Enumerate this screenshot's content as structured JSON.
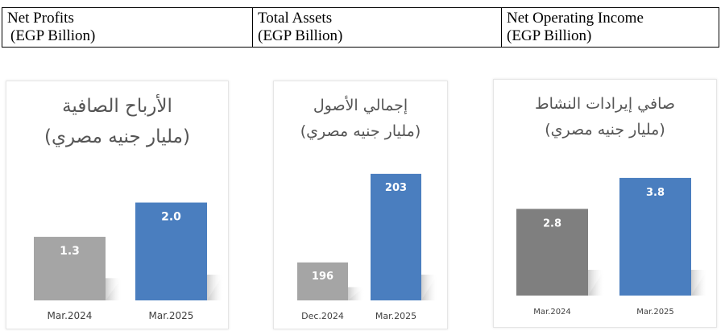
{
  "header": {
    "columns": [
      {
        "line1": "Net Profits",
        "line2": "(EGP Billion)"
      },
      {
        "line1": "Total Assets",
        "line2": "(EGP Billion)"
      },
      {
        "line1": "Net Operating Income",
        "line2": "(EGP Billion)"
      }
    ]
  },
  "colors": {
    "gray": "#a5a5a5",
    "dark_gray": "#7f7f7f",
    "blue": "#4a7ebf"
  },
  "chart_data": [
    {
      "type": "bar",
      "title": "الأرباح الصافية",
      "subtitle": "(مليار جنيه مصري)",
      "categories": [
        "Mar.2024",
        "Mar.2025"
      ],
      "values": [
        1.3,
        2.0
      ],
      "data_labels": [
        "1.3",
        "2.0"
      ],
      "ylim": [
        0,
        2.7
      ],
      "colors": [
        "#a5a5a5",
        "#4a7ebf"
      ]
    },
    {
      "type": "bar",
      "title": "إجمالي الأصول",
      "subtitle": "(مليار جنيه مصري)",
      "categories": [
        "Dec.2024",
        "Mar.2025"
      ],
      "values": [
        196,
        203
      ],
      "data_labels": [
        "196",
        "203"
      ],
      "ylim": [
        193,
        204.2
      ],
      "colors": [
        "#a5a5a5",
        "#4a7ebf"
      ]
    },
    {
      "type": "bar",
      "title": "صافي إيرادات النشاط",
      "subtitle": "(مليار جنيه مصري)",
      "categories": [
        "Mar.2024",
        "Mar.2025"
      ],
      "values": [
        2.8,
        3.8
      ],
      "data_labels": [
        "2.8",
        "3.8"
      ],
      "ylim": [
        0,
        4.5
      ],
      "colors": [
        "#7f7f7f",
        "#4a7ebf"
      ]
    }
  ]
}
